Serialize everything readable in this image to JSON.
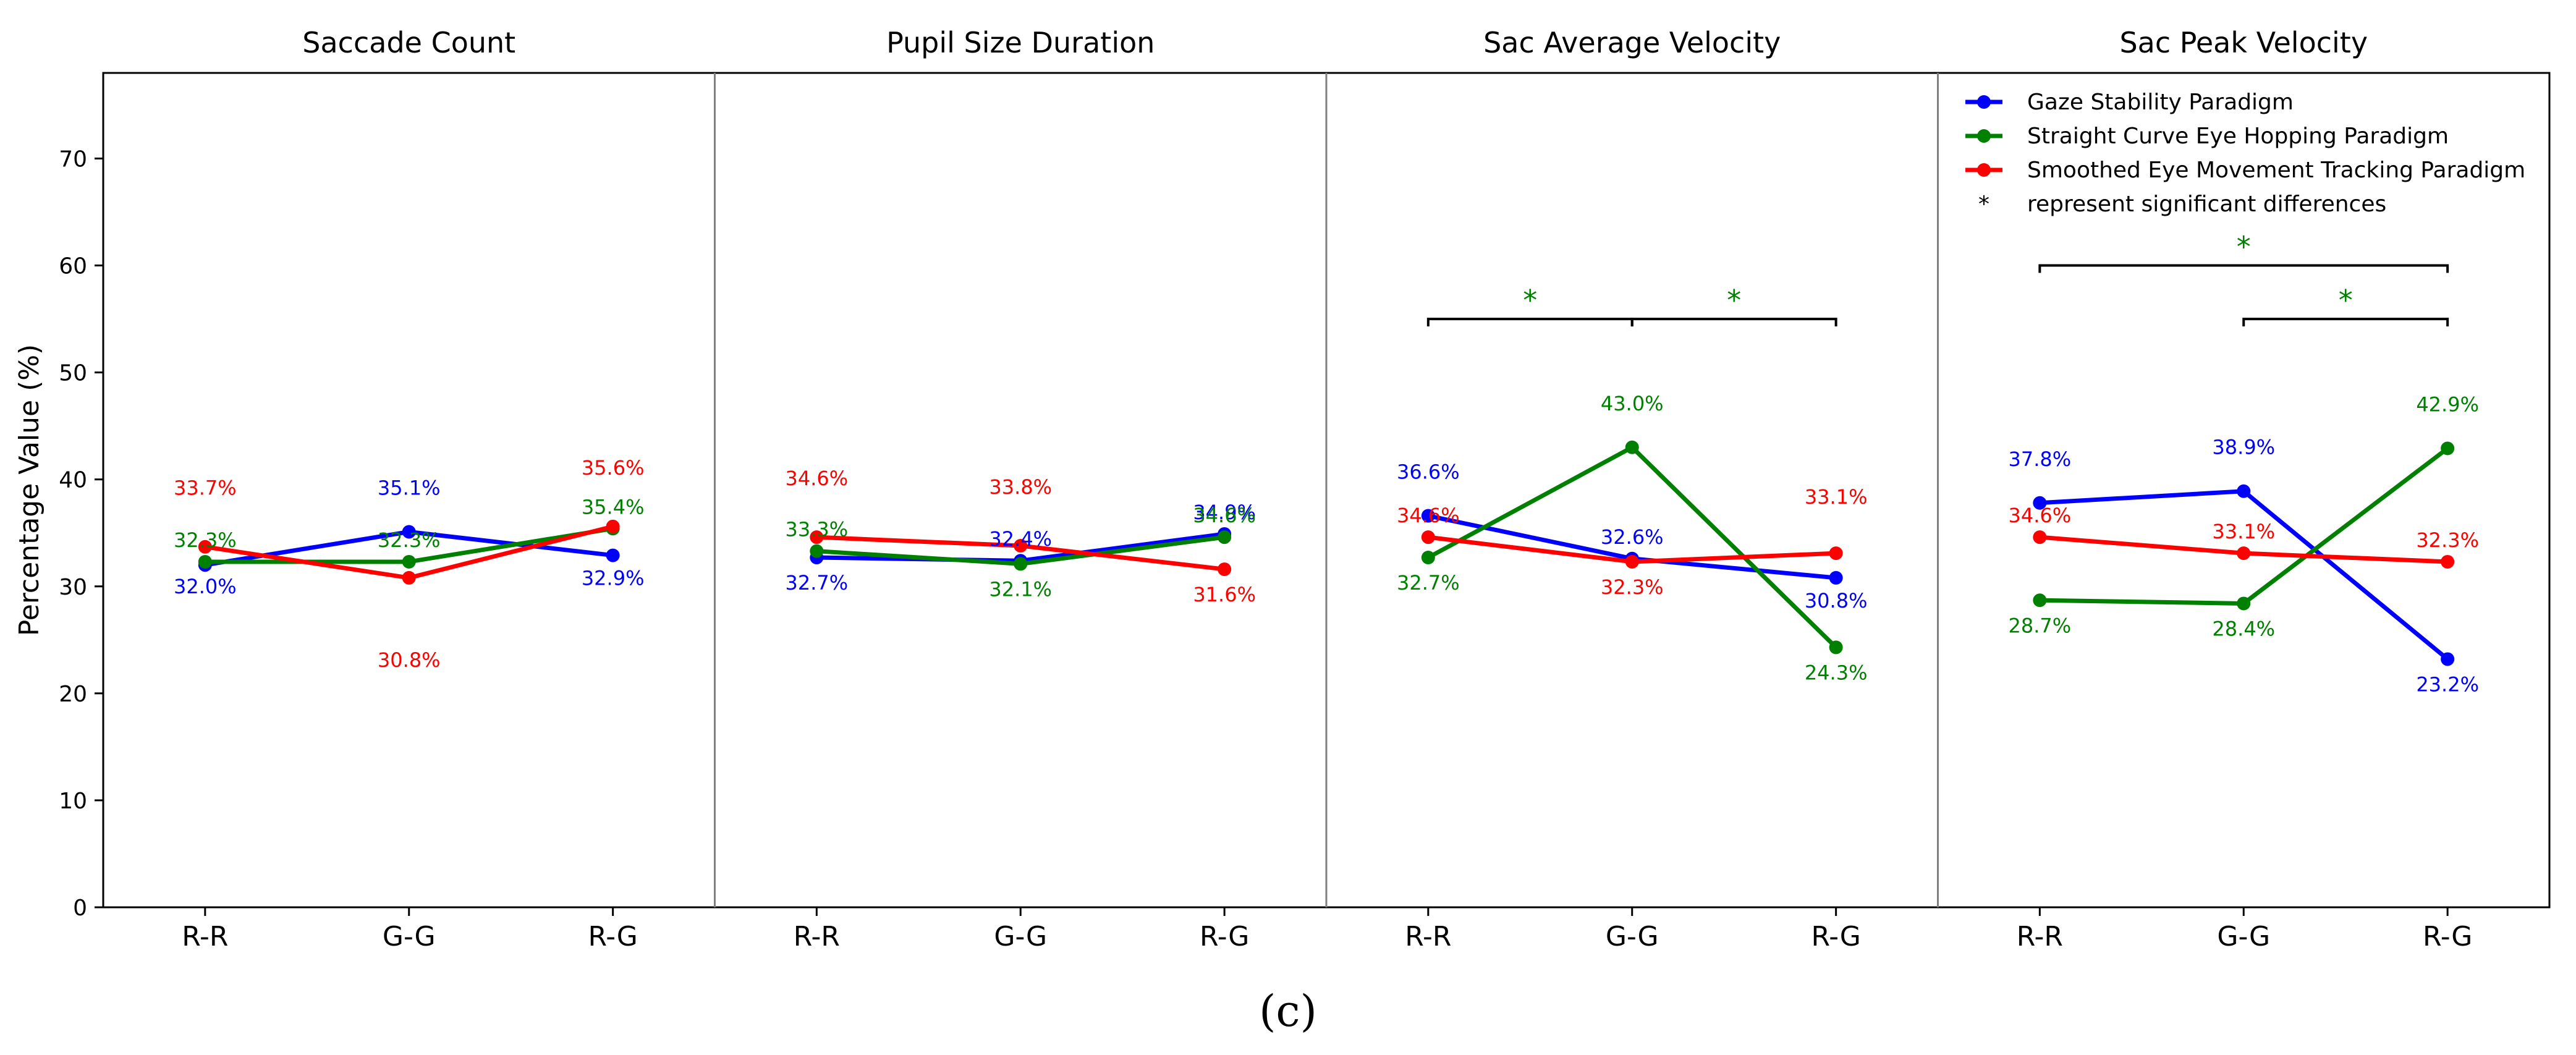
{
  "chart_data": {
    "type": "line",
    "ylabel": "Percentage Value (%)",
    "ylim": [
      0,
      78
    ],
    "yticks": [
      0,
      10,
      20,
      30,
      40,
      50,
      60,
      70
    ],
    "categories": [
      "R-R",
      "G-G",
      "R-G"
    ],
    "caption": "(c)",
    "series_meta": [
      {
        "name": "Gaze Stability Paradigm",
        "color": "#0000ff"
      },
      {
        "name": "Straight Curve Eye Hopping Paradigm",
        "color": "#008000"
      },
      {
        "name": "Smoothed Eye Movement Tracking Paradigm",
        "color": "#ff0000"
      }
    ],
    "legend": {
      "position": "upper-right of last panel",
      "note_symbol": "*",
      "note_label": "represent significant differences"
    },
    "panels": [
      {
        "title": "Saccade Count",
        "series": [
          {
            "values": [
              32.0,
              35.1,
              32.9
            ],
            "labels": [
              "32.0%",
              "35.1%",
              "32.9%"
            ]
          },
          {
            "values": [
              32.3,
              32.3,
              35.4
            ],
            "labels": [
              "32.3%",
              "32.3%",
              "35.4%"
            ]
          },
          {
            "values": [
              33.7,
              30.8,
              35.6
            ],
            "labels": [
              "33.7%",
              "30.8%",
              "35.6%"
            ]
          }
        ],
        "significance": []
      },
      {
        "title": "Pupil Size Duration",
        "series": [
          {
            "values": [
              32.7,
              32.4,
              34.9
            ],
            "labels": [
              "32.7%",
              "32.4%",
              "34.9%"
            ]
          },
          {
            "values": [
              33.3,
              32.1,
              34.6
            ],
            "labels": [
              "33.3%",
              "32.1%",
              "34.6%"
            ]
          },
          {
            "values": [
              34.6,
              33.8,
              31.6
            ],
            "labels": [
              "34.6%",
              "33.8%",
              "31.6%"
            ]
          }
        ],
        "significance": []
      },
      {
        "title": "Sac Average Velocity",
        "series": [
          {
            "values": [
              36.6,
              32.6,
              30.8
            ],
            "labels": [
              "36.6%",
              "32.6%",
              "30.8%"
            ]
          },
          {
            "values": [
              32.7,
              43.0,
              24.3
            ],
            "labels": [
              "32.7%",
              "43.0%",
              "24.3%"
            ]
          },
          {
            "values": [
              34.6,
              32.3,
              33.1
            ],
            "labels": [
              "34.6%",
              "32.3%",
              "33.1%"
            ]
          }
        ],
        "significance": [
          {
            "from": 0,
            "to": 1,
            "y": 55,
            "mark": "*"
          },
          {
            "from": 1,
            "to": 2,
            "y": 55,
            "mark": "*"
          }
        ]
      },
      {
        "title": "Sac Peak Velocity",
        "series": [
          {
            "values": [
              37.8,
              38.9,
              23.2
            ],
            "labels": [
              "37.8%",
              "38.9%",
              "23.2%"
            ]
          },
          {
            "values": [
              28.7,
              28.4,
              42.9
            ],
            "labels": [
              "28.7%",
              "28.4%",
              "42.9%"
            ]
          },
          {
            "values": [
              34.6,
              33.1,
              32.3
            ],
            "labels": [
              "34.6%",
              "33.1%",
              "32.3%"
            ]
          }
        ],
        "significance": [
          {
            "from": 0,
            "to": 2,
            "y": 60,
            "mark": "*"
          },
          {
            "from": 1,
            "to": 2,
            "y": 55,
            "mark": "*"
          }
        ]
      }
    ]
  }
}
